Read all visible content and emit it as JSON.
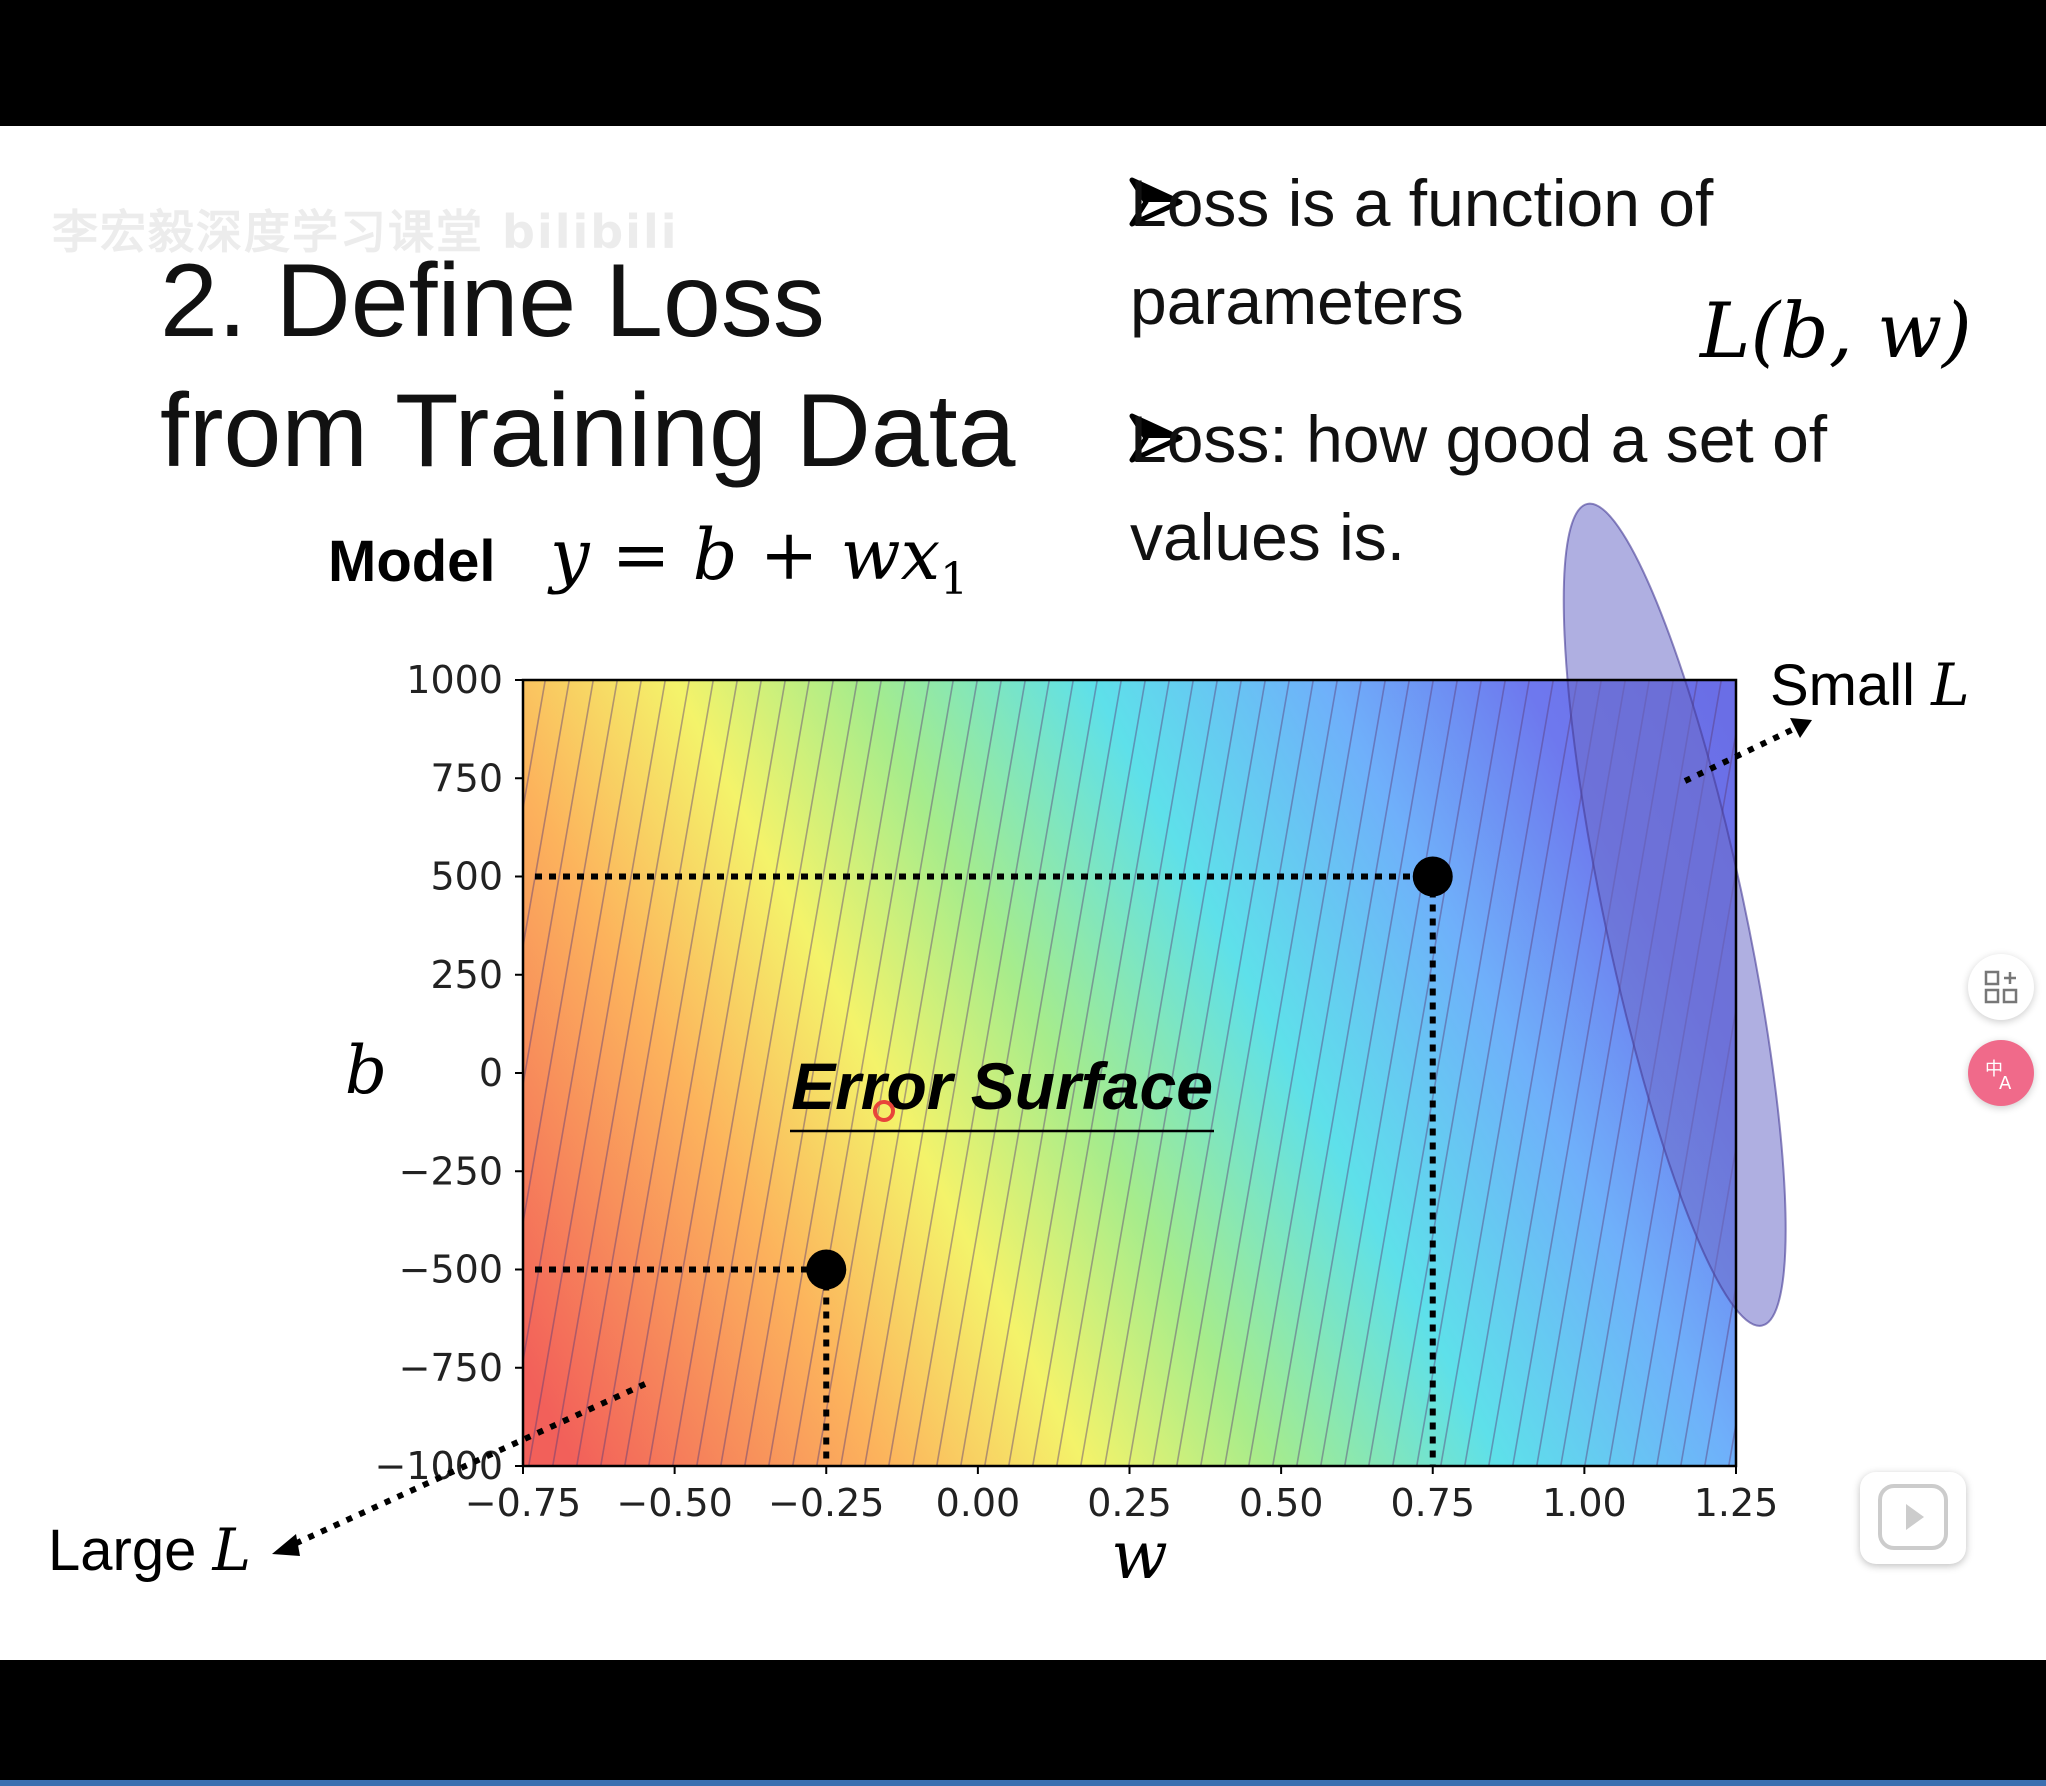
{
  "slide": {
    "watermark": "李宏毅深度学习课堂 bilibili",
    "title_line1": "2. Define Loss",
    "title_line2": "from Training Data",
    "model_label": "Model",
    "model_equation": "y = b + wx",
    "model_subscript": "1",
    "bullets": [
      {
        "line1": "Loss is a function of",
        "line2": "parameters"
      },
      {
        "line1": "Loss: how good a set of",
        "line2": "values is."
      }
    ],
    "loss_notation": "L(b, w)",
    "small_label": "Small",
    "large_label": "Large",
    "L_symbol": "L"
  },
  "chart_data": {
    "type": "heatmap",
    "subtype": "contour",
    "xlabel": "w",
    "ylabel": "b",
    "xlim": [
      -0.75,
      1.25
    ],
    "ylim": [
      -1000,
      1000
    ],
    "xticks": [
      "−0.75",
      "−0.50",
      "−0.25",
      "0.00",
      "0.25",
      "0.50",
      "0.75",
      "1.00",
      "1.25"
    ],
    "yticks": [
      "1000",
      "750",
      "500",
      "250",
      "0",
      "−250",
      "−500",
      "−750",
      "−1000"
    ],
    "colormap": "jet (red = large loss, blue = small loss)",
    "annotation": "Error Surface",
    "marked_points": [
      {
        "w": -0.25,
        "b": -500
      },
      {
        "w": 0.75,
        "b": 500
      }
    ],
    "min_region": {
      "w": 1.05,
      "b": 250
    }
  },
  "ui": {
    "side_buttons": [
      "grid-plus-icon",
      "translate-icon"
    ],
    "play_button": "play-icon"
  }
}
